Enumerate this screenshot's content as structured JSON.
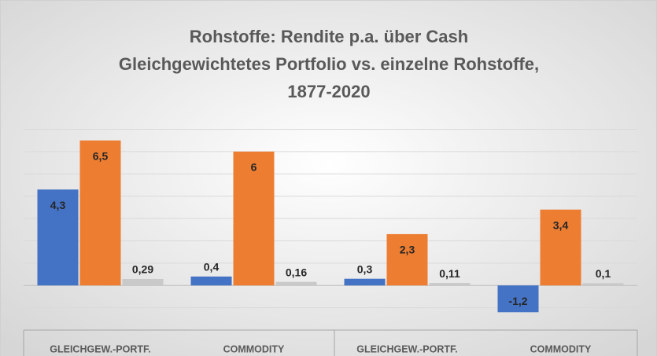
{
  "chart_data": {
    "type": "bar",
    "title": [
      "Rohstoffe: Rendite p.a. über Cash",
      "Gleichgewichtetes Portfolio vs. einzelne Rohstoffe,",
      "1877-2020"
    ],
    "categories": [
      "GLEICHGEW.-PORTF.",
      "COMMODITY",
      "GLEICHGEW.-PORTF.",
      "COMMODITY"
    ],
    "series": [
      {
        "color": "#4472c4",
        "values": [
          4.3,
          0.4,
          0.3,
          -1.2
        ],
        "value_labels": [
          "4,3",
          "0,4",
          "0,3",
          "-1,2"
        ]
      },
      {
        "color": "#ed7d31",
        "values": [
          6.5,
          6,
          2.3,
          3.4
        ],
        "value_labels": [
          "6,5",
          "6",
          "2,3",
          "3,4"
        ]
      },
      {
        "color": "#c9c9c9",
        "values": [
          0.29,
          0.16,
          0.11,
          0.1
        ],
        "value_labels": [
          "0,29",
          "0,16",
          "0,11",
          "0,1"
        ]
      }
    ],
    "ylim": [
      -2,
      7
    ],
    "yticks": [
      -2,
      -1,
      0,
      1,
      2,
      3,
      4,
      5,
      6,
      7
    ],
    "grid": true
  }
}
